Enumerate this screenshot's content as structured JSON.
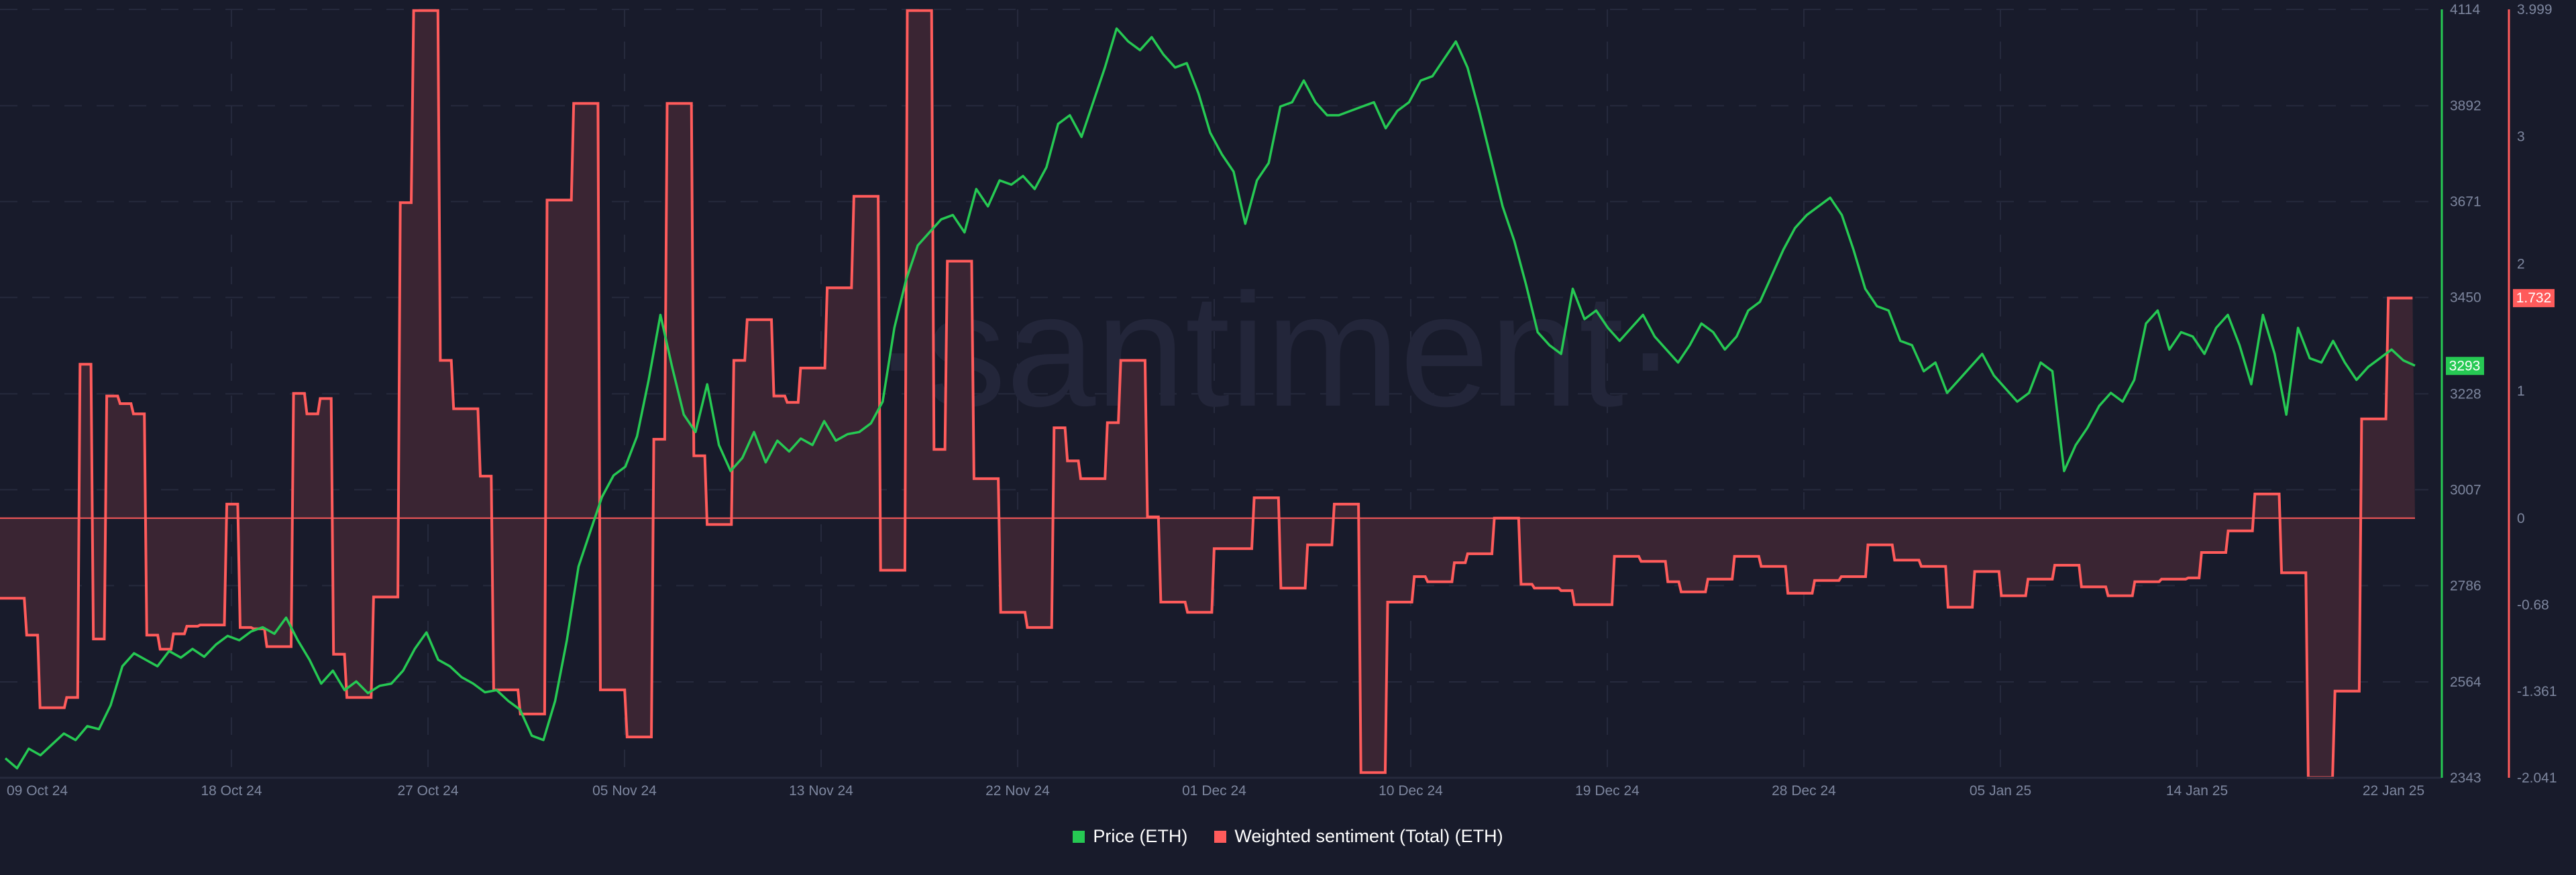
{
  "chart_data": {
    "type": "line",
    "title": "",
    "watermark": "·santiment·",
    "x_ticks": [
      "09 Oct 24",
      "18 Oct 24",
      "27 Oct 24",
      "05 Nov 24",
      "13 Nov 24",
      "22 Nov 24",
      "01 Dec 24",
      "10 Dec 24",
      "19 Dec 24",
      "28 Dec 24",
      "05 Jan 25",
      "14 Jan 25",
      "22 Jan 25"
    ],
    "x_range": [
      "09 Oct 24",
      "22 Jan 25"
    ],
    "y_left": null,
    "y_price": {
      "label": "Price (ETH)",
      "ticks": [
        4114,
        3892,
        3671,
        3450,
        3228,
        3007,
        2786,
        2564,
        2343
      ],
      "range": [
        2343,
        4114
      ],
      "current_value": 3293,
      "color": "#26c953"
    },
    "y_sentiment": {
      "label": "Weighted sentiment (Total) (ETH)",
      "ticks": [
        3.999,
        3,
        2,
        1,
        0,
        -0.68,
        -1.361,
        -2.041
      ],
      "range": [
        -2.041,
        3.999
      ],
      "current_value": 1.732,
      "color": "#ff5b5b"
    },
    "grid": true,
    "legend_position": "bottom",
    "series": [
      {
        "name": "Price (ETH)",
        "axis": "price",
        "style": "line",
        "color": "#26c953",
        "values": [
          2388,
          2365,
          2410,
          2395,
          2420,
          2445,
          2430,
          2462,
          2455,
          2510,
          2600,
          2630,
          2615,
          2600,
          2635,
          2620,
          2640,
          2622,
          2650,
          2670,
          2660,
          2680,
          2690,
          2675,
          2712,
          2660,
          2615,
          2560,
          2590,
          2545,
          2565,
          2538,
          2555,
          2560,
          2590,
          2640,
          2678,
          2615,
          2600,
          2575,
          2560,
          2540,
          2545,
          2520,
          2500,
          2440,
          2430,
          2520,
          2660,
          2830,
          2910,
          2990,
          3040,
          3060,
          3130,
          3260,
          3410,
          3290,
          3180,
          3140,
          3250,
          3110,
          3050,
          3080,
          3140,
          3070,
          3120,
          3095,
          3125,
          3110,
          3165,
          3120,
          3135,
          3140,
          3160,
          3210,
          3380,
          3490,
          3570,
          3600,
          3630,
          3640,
          3600,
          3700,
          3660,
          3720,
          3710,
          3730,
          3700,
          3750,
          3850,
          3870,
          3820,
          3900,
          3980,
          4070,
          4040,
          4020,
          4050,
          4010,
          3980,
          3990,
          3920,
          3830,
          3780,
          3740,
          3620,
          3720,
          3760,
          3890,
          3900,
          3950,
          3900,
          3870,
          3870,
          3880,
          3890,
          3900,
          3840,
          3880,
          3900,
          3950,
          3960,
          4000,
          4040,
          3980,
          3880,
          3770,
          3660,
          3580,
          3480,
          3370,
          3340,
          3320,
          3470,
          3400,
          3420,
          3380,
          3350,
          3380,
          3410,
          3360,
          3330,
          3300,
          3340,
          3390,
          3370,
          3330,
          3360,
          3420,
          3440,
          3500,
          3560,
          3610,
          3640,
          3660,
          3680,
          3640,
          3560,
          3470,
          3430,
          3420,
          3350,
          3340,
          3280,
          3300,
          3230,
          3260,
          3290,
          3320,
          3270,
          3240,
          3210,
          3230,
          3300,
          3280,
          3050,
          3110,
          3150,
          3200,
          3230,
          3210,
          3260,
          3390,
          3420,
          3330,
          3370,
          3360,
          3320,
          3380,
          3410,
          3340,
          3250,
          3410,
          3320,
          3180,
          3380,
          3310,
          3300,
          3350,
          3300,
          3260,
          3290,
          3310,
          3330,
          3305,
          3293
        ],
        "current": 3293
      },
      {
        "name": "Weighted sentiment (Total) (ETH)",
        "axis": "sentiment",
        "style": "step-area",
        "color": "#ff5b5b",
        "fill": "#3a2533",
        "values": [
          -0.63,
          -0.63,
          -0.92,
          -1.49,
          -1.49,
          -1.41,
          1.21,
          -0.95,
          0.96,
          0.9,
          0.82,
          -0.92,
          -1.03,
          -0.91,
          -0.85,
          -0.84,
          -0.84,
          0.11,
          -0.86,
          -0.87,
          -1.01,
          -1.01,
          0.98,
          0.82,
          0.94,
          -1.07,
          -1.41,
          -1.41,
          -0.62,
          -0.62,
          2.48,
          3.99,
          3.99,
          1.24,
          0.86,
          0.86,
          0.33,
          -1.35,
          -1.35,
          -1.54,
          -1.54,
          2.5,
          2.5,
          3.26,
          3.26,
          -1.35,
          -1.35,
          -1.72,
          -1.72,
          0.62,
          3.26,
          3.26,
          0.49,
          -0.05,
          -0.05,
          1.24,
          1.56,
          1.56,
          0.96,
          0.91,
          1.18,
          1.18,
          1.81,
          1.81,
          2.53,
          2.53,
          -0.41,
          -0.41,
          3.99,
          3.99,
          0.54,
          2.02,
          2.02,
          0.31,
          0.31,
          -0.74,
          -0.74,
          -0.86,
          -0.86,
          0.71,
          0.45,
          0.31,
          0.31,
          0.75,
          1.24,
          1.24,
          0.01,
          -0.66,
          -0.66,
          -0.74,
          -0.74,
          -0.24,
          -0.24,
          -0.24,
          0.16,
          0.16,
          -0.55,
          -0.55,
          -0.21,
          -0.21,
          0.11,
          0.11,
          -2.0,
          -2.0,
          -0.66,
          -0.66,
          -0.46,
          -0.5,
          -0.5,
          -0.35,
          -0.28,
          -0.28,
          0.0,
          0.0,
          -0.52,
          -0.55,
          -0.55,
          -0.57,
          -0.68,
          -0.68,
          -0.68,
          -0.3,
          -0.3,
          -0.34,
          -0.34,
          -0.5,
          -0.58,
          -0.58,
          -0.48,
          -0.48,
          -0.3,
          -0.3,
          -0.38,
          -0.38,
          -0.59,
          -0.59,
          -0.49,
          -0.49,
          -0.46,
          -0.46,
          -0.21,
          -0.21,
          -0.33,
          -0.33,
          -0.38,
          -0.38,
          -0.7,
          -0.7,
          -0.42,
          -0.42,
          -0.61,
          -0.61,
          -0.48,
          -0.48,
          -0.37,
          -0.37,
          -0.54,
          -0.54,
          -0.61,
          -0.61,
          -0.5,
          -0.5,
          -0.48,
          -0.48,
          -0.47,
          -0.27,
          -0.27,
          -0.1,
          -0.1,
          0.19,
          0.19,
          -0.43,
          -0.43,
          -2.04,
          -2.04,
          -1.36,
          -1.36,
          0.78,
          0.78,
          1.73,
          1.73
        ],
        "current": 1.732
      }
    ]
  },
  "axes": {
    "price_ticks": [
      "4114",
      "3892",
      "3671",
      "3450",
      "3228",
      "3007",
      "2786",
      "2564",
      "2343"
    ],
    "sentiment_ticks": [
      "3.999",
      "3",
      "2",
      "1",
      "0",
      "-0.68",
      "-1.361",
      "-2.041"
    ],
    "price_badge": "3293",
    "sentiment_badge": "1.732"
  },
  "legend": {
    "items": [
      {
        "label": "Price (ETH)",
        "color": "#26c953"
      },
      {
        "label": "Weighted sentiment (Total) (ETH)",
        "color": "#ff5b5b"
      }
    ]
  }
}
